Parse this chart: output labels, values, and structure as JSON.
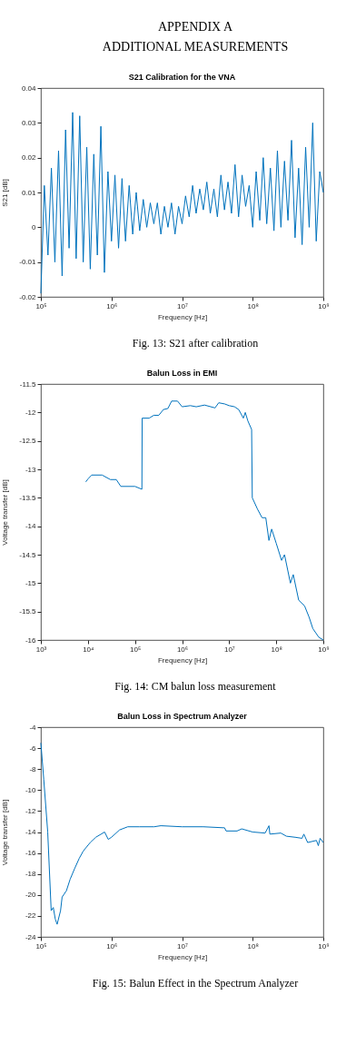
{
  "chart_data": [
    {
      "type": "line",
      "title": "S21 Calibration for the VNA",
      "xlabel": "Frequency [Hz]",
      "ylabel": "S21 [dB]",
      "x": [
        100000.0,
        112000.0,
        126000.0,
        141000.0,
        158000.0,
        178000.0,
        200000.0,
        224000.0,
        251000.0,
        282000.0,
        316000.0,
        355000.0,
        398000.0,
        447000.0,
        501000.0,
        562000.0,
        631000.0,
        708000.0,
        794000.0,
        891000.0,
        1000000.0,
        1120000.0,
        1260000.0,
        1410000.0,
        1580000.0,
        1780000.0,
        2000000.0,
        2240000.0,
        2510000.0,
        2820000.0,
        3160000.0,
        3550000.0,
        3980000.0,
        4470000.0,
        5010000.0,
        5620000.0,
        6310000.0,
        7080000.0,
        7940000.0,
        8910000.0,
        10000000.0,
        11200000.0,
        12600000.0,
        14100000.0,
        15800000.0,
        17800000.0,
        20000000.0,
        22400000.0,
        25100000.0,
        28200000.0,
        31600000.0,
        35500000.0,
        39800000.0,
        44700000.0,
        50100000.0,
        56200000.0,
        63100000.0,
        70800000.0,
        79400000.0,
        89100000.0,
        100000000.0,
        112000000.0,
        126000000.0,
        141000000.0,
        158000000.0,
        178000000.0,
        200000000.0,
        224000000.0,
        251000000.0,
        282000000.0,
        316000000.0,
        355000000.0,
        398000000.0,
        447000000.0,
        501000000.0,
        562000000.0,
        631000000.0,
        708000000.0,
        794000000.0,
        891000000.0,
        1000000000.0
      ],
      "series": [
        {
          "color": "#0072bd",
          "values": [
            -0.019,
            0.012,
            -0.008,
            0.017,
            -0.01,
            0.022,
            -0.014,
            0.028,
            -0.006,
            0.033,
            -0.009,
            0.032,
            -0.01,
            0.023,
            -0.012,
            0.021,
            -0.008,
            0.029,
            -0.013,
            0.016,
            -0.004,
            0.015,
            -0.006,
            0.014,
            -0.004,
            0.012,
            -0.002,
            0.01,
            -0.001,
            0.008,
            0.0,
            0.007,
            0.001,
            0.007,
            -0.002,
            0.006,
            0.0,
            0.007,
            -0.002,
            0.006,
            0.001,
            0.009,
            0.003,
            0.012,
            0.004,
            0.011,
            0.005,
            0.013,
            0.004,
            0.011,
            0.003,
            0.015,
            0.005,
            0.013,
            0.004,
            0.018,
            0.003,
            0.015,
            0.006,
            0.012,
            0.0,
            0.016,
            0.002,
            0.02,
            0.001,
            0.017,
            -0.001,
            0.022,
            0.0,
            0.019,
            0.002,
            0.025,
            -0.003,
            0.017,
            -0.005,
            0.023,
            0.0,
            0.03,
            -0.004,
            0.016,
            0.01
          ]
        }
      ],
      "xlim": [
        100000.0,
        1000000000.0
      ],
      "ylim": [
        -0.02,
        0.04
      ],
      "xticks": [
        {
          "value": 100000.0,
          "label": "10⁵"
        },
        {
          "value": 1000000.0,
          "label": "10⁶"
        },
        {
          "value": 10000000.0,
          "label": "10⁷"
        },
        {
          "value": 100000000.0,
          "label": "10⁸"
        },
        {
          "value": 1000000000.0,
          "label": "10⁹"
        }
      ],
      "yticks": [
        -0.02,
        -0.01,
        0,
        0.01,
        0.02,
        0.03,
        0.04
      ],
      "log": "x",
      "grid": false,
      "annotations": [
        "APPENDIX A",
        "ADDITIONAL MEASUREMENTS",
        "Fig. 13: S21 after calibration"
      ]
    },
    {
      "type": "line",
      "title": "Balun Loss in EMI",
      "xlabel": "Frequency [Hz]",
      "ylabel": "Voltage transfer [dB]",
      "x": [
        9000.0,
        10000.0,
        12000.0,
        20000.0,
        30000.0,
        40000.0,
        50000.0,
        100000.0,
        140000.0,
        142000.0,
        200000.0,
        250000.0,
        320000.0,
        400000.0,
        500000.0,
        600000.0,
        800000.0,
        1000000.0,
        1500000.0,
        2000000.0,
        3000000.0,
        5000000.0,
        6000000.0,
        8000000.0,
        10000000.0,
        13000000.0,
        16000000.0,
        20000000.0,
        22000000.0,
        25000000.0,
        30000000.0,
        31000000.0,
        40000000.0,
        50000000.0,
        60000000.0,
        70000000.0,
        80000000.0,
        100000000.0,
        130000000.0,
        150000000.0,
        200000000.0,
        230000000.0,
        300000000.0,
        400000000.0,
        500000000.0,
        600000000.0,
        800000000.0,
        1000000000.0
      ],
      "series": [
        {
          "color": "#0072bd",
          "values": [
            -13.22,
            -13.17,
            -13.1,
            -13.1,
            -13.18,
            -13.18,
            -13.3,
            -13.3,
            -13.35,
            -12.1,
            -12.1,
            -12.05,
            -12.05,
            -11.95,
            -11.93,
            -11.8,
            -11.8,
            -11.9,
            -11.88,
            -11.9,
            -11.87,
            -11.92,
            -11.83,
            -11.85,
            -11.88,
            -11.9,
            -11.95,
            -12.1,
            -12.0,
            -12.15,
            -12.3,
            -13.5,
            -13.7,
            -13.85,
            -13.85,
            -14.25,
            -14.05,
            -14.3,
            -14.6,
            -14.5,
            -15.0,
            -14.85,
            -15.3,
            -15.4,
            -15.6,
            -15.8,
            -15.95,
            -16.0
          ]
        }
      ],
      "xlim": [
        1000.0,
        1000000000.0
      ],
      "ylim": [
        -16,
        -11.5
      ],
      "xticks": [
        {
          "value": 1000.0,
          "label": "10³"
        },
        {
          "value": 10000.0,
          "label": "10⁴"
        },
        {
          "value": 100000.0,
          "label": "10⁵"
        },
        {
          "value": 1000000.0,
          "label": "10⁶"
        },
        {
          "value": 10000000.0,
          "label": "10⁷"
        },
        {
          "value": 100000000.0,
          "label": "10⁸"
        },
        {
          "value": 1000000000.0,
          "label": "10⁹"
        }
      ],
      "yticks": [
        -16,
        -15.5,
        -15,
        -14.5,
        -14,
        -13.5,
        -13,
        -12.5,
        -12,
        -11.5
      ],
      "log": "x",
      "grid": false,
      "annotations": [
        "Fig. 14: CM balun loss measurement"
      ]
    },
    {
      "type": "line",
      "title": "Balun Loss in Spectrum Analyzer",
      "xlabel": "Frequency [Hz]",
      "ylabel": "Voltage transfer [dB]",
      "x": [
        100000.0,
        110000.0,
        125000.0,
        140000.0,
        150000.0,
        160000.0,
        170000.0,
        190000.0,
        200000.0,
        230000.0,
        260000.0,
        300000.0,
        350000.0,
        400000.0,
        500000.0,
        600000.0,
        800000.0,
        900000.0,
        1000000.0,
        1300000.0,
        1700000.0,
        2500000.0,
        4000000.0,
        5000000.0,
        10000000.0,
        20000000.0,
        40000000.0,
        42000000.0,
        60000000.0,
        70000000.0,
        100000000.0,
        150000000.0,
        170000000.0,
        175000000.0,
        250000000.0,
        300000000.0,
        400000000.0,
        500000000.0,
        530000000.0,
        600000000.0,
        800000000.0,
        850000000.0,
        900000000.0,
        1000000000.0
      ],
      "series": [
        {
          "color": "#0072bd",
          "values": [
            -5.5,
            -9,
            -14,
            -21.5,
            -21.2,
            -22.3,
            -22.8,
            -21.5,
            -20.2,
            -19.6,
            -18.5,
            -17.5,
            -16.5,
            -15.8,
            -15.0,
            -14.5,
            -14.0,
            -14.7,
            -14.5,
            -13.8,
            -13.5,
            -13.5,
            -13.5,
            -13.4,
            -13.5,
            -13.5,
            -13.6,
            -13.9,
            -13.9,
            -13.7,
            -14.0,
            -14.1,
            -13.4,
            -14.2,
            -14.1,
            -14.4,
            -14.5,
            -14.6,
            -14.2,
            -15.0,
            -14.8,
            -15.3,
            -14.6,
            -15.0
          ]
        }
      ],
      "xlim": [
        100000.0,
        1000000000.0
      ],
      "ylim": [
        -24,
        -4
      ],
      "xticks": [
        {
          "value": 100000.0,
          "label": "10⁵"
        },
        {
          "value": 1000000.0,
          "label": "10⁶"
        },
        {
          "value": 10000000.0,
          "label": "10⁷"
        },
        {
          "value": 100000000.0,
          "label": "10⁸"
        },
        {
          "value": 1000000000.0,
          "label": "10⁹"
        }
      ],
      "yticks": [
        -24,
        -22,
        -20,
        -18,
        -16,
        -14,
        -12,
        -10,
        -8,
        -6,
        -4
      ],
      "log": "x",
      "grid": false,
      "annotations": [
        "Fig. 15: Balun Effect in the Spectrum Analyzer"
      ]
    }
  ]
}
